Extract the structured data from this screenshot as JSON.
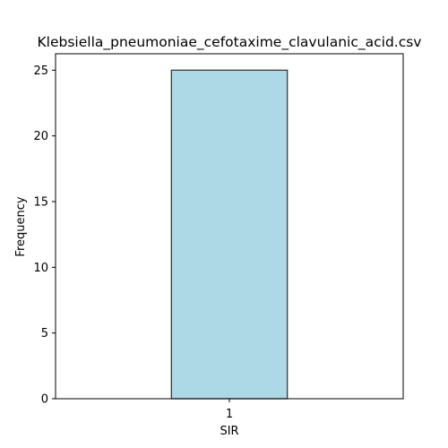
{
  "chart_data": {
    "type": "bar",
    "title": "Klebsiella_pneumoniae_cefotaxime_clavulanic_acid.csv",
    "xlabel": "SIR",
    "ylabel": "Frequency",
    "categories": [
      "1"
    ],
    "values": [
      25
    ],
    "ylim": [
      0,
      26.25
    ],
    "yticks": [
      0,
      5,
      10,
      15,
      20,
      25
    ],
    "grid": false,
    "legend": "none",
    "colors": {
      "bar_fill": "#add8e6",
      "bar_edge": "#3a3a3a",
      "axes": "#000000"
    }
  }
}
